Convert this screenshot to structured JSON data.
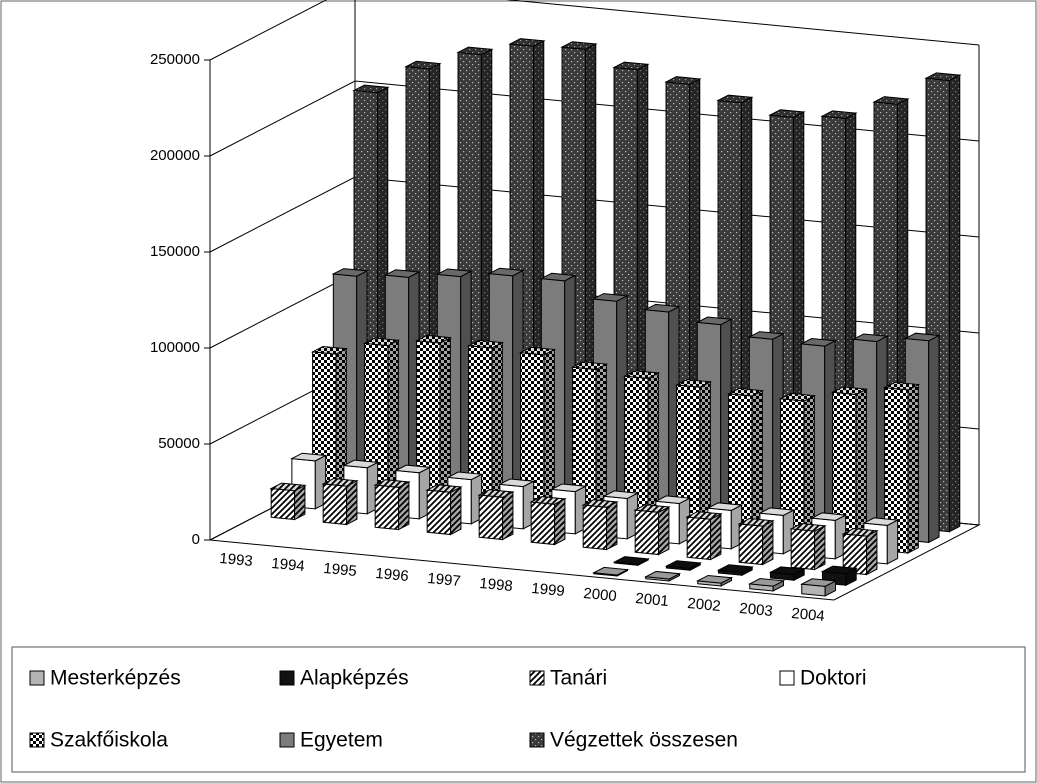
{
  "chart_data": {
    "type": "bar3d",
    "categories": [
      "1993",
      "1994",
      "1995",
      "1996",
      "1997",
      "1998",
      "1999",
      "2000",
      "2001",
      "2002",
      "2003",
      "2004"
    ],
    "ylim": [
      0,
      250000
    ],
    "yticks": [
      0,
      50000,
      100000,
      150000,
      200000,
      250000
    ],
    "grid": true,
    "series": [
      {
        "name": "Mesterképzés",
        "color": "#b4b4b4",
        "values": [
          null,
          null,
          null,
          null,
          null,
          null,
          null,
          500,
          1000,
          1500,
          2500,
          5000
        ]
      },
      {
        "name": "Alapképzés",
        "color": "#111111",
        "values": [
          null,
          null,
          null,
          null,
          null,
          null,
          null,
          500,
          1000,
          1500,
          3000,
          6000
        ]
      },
      {
        "name": "Tanári",
        "color": "#ffffff",
        "values": [
          15000,
          20000,
          22000,
          22000,
          22000,
          21000,
          22000,
          22000,
          21000,
          20000,
          20000,
          20000
        ]
      },
      {
        "name": "Doktori",
        "color": "#ffffff",
        "values": [
          25000,
          24000,
          24000,
          23000,
          22000,
          22000,
          21000,
          21000,
          20000,
          20000,
          20000,
          20000
        ]
      },
      {
        "name": "Szakfőiskola",
        "color": "#ffffff",
        "values": [
          75000,
          82000,
          86000,
          86000,
          85000,
          80000,
          78000,
          76000,
          74000,
          74000,
          80000,
          85000
        ]
      },
      {
        "name": "Egyetem",
        "color": "#7c7c7c",
        "values": [
          110000,
          112000,
          115000,
          118000,
          118000,
          110000,
          107000,
          103000,
          98000,
          97000,
          102000,
          105000
        ]
      },
      {
        "name": "Végzettek összesen",
        "color": "#3a3a3a",
        "values": [
          200000,
          215000,
          225000,
          232000,
          233000,
          225000,
          220000,
          213000,
          208000,
          210000,
          220000,
          235000
        ]
      }
    ]
  }
}
